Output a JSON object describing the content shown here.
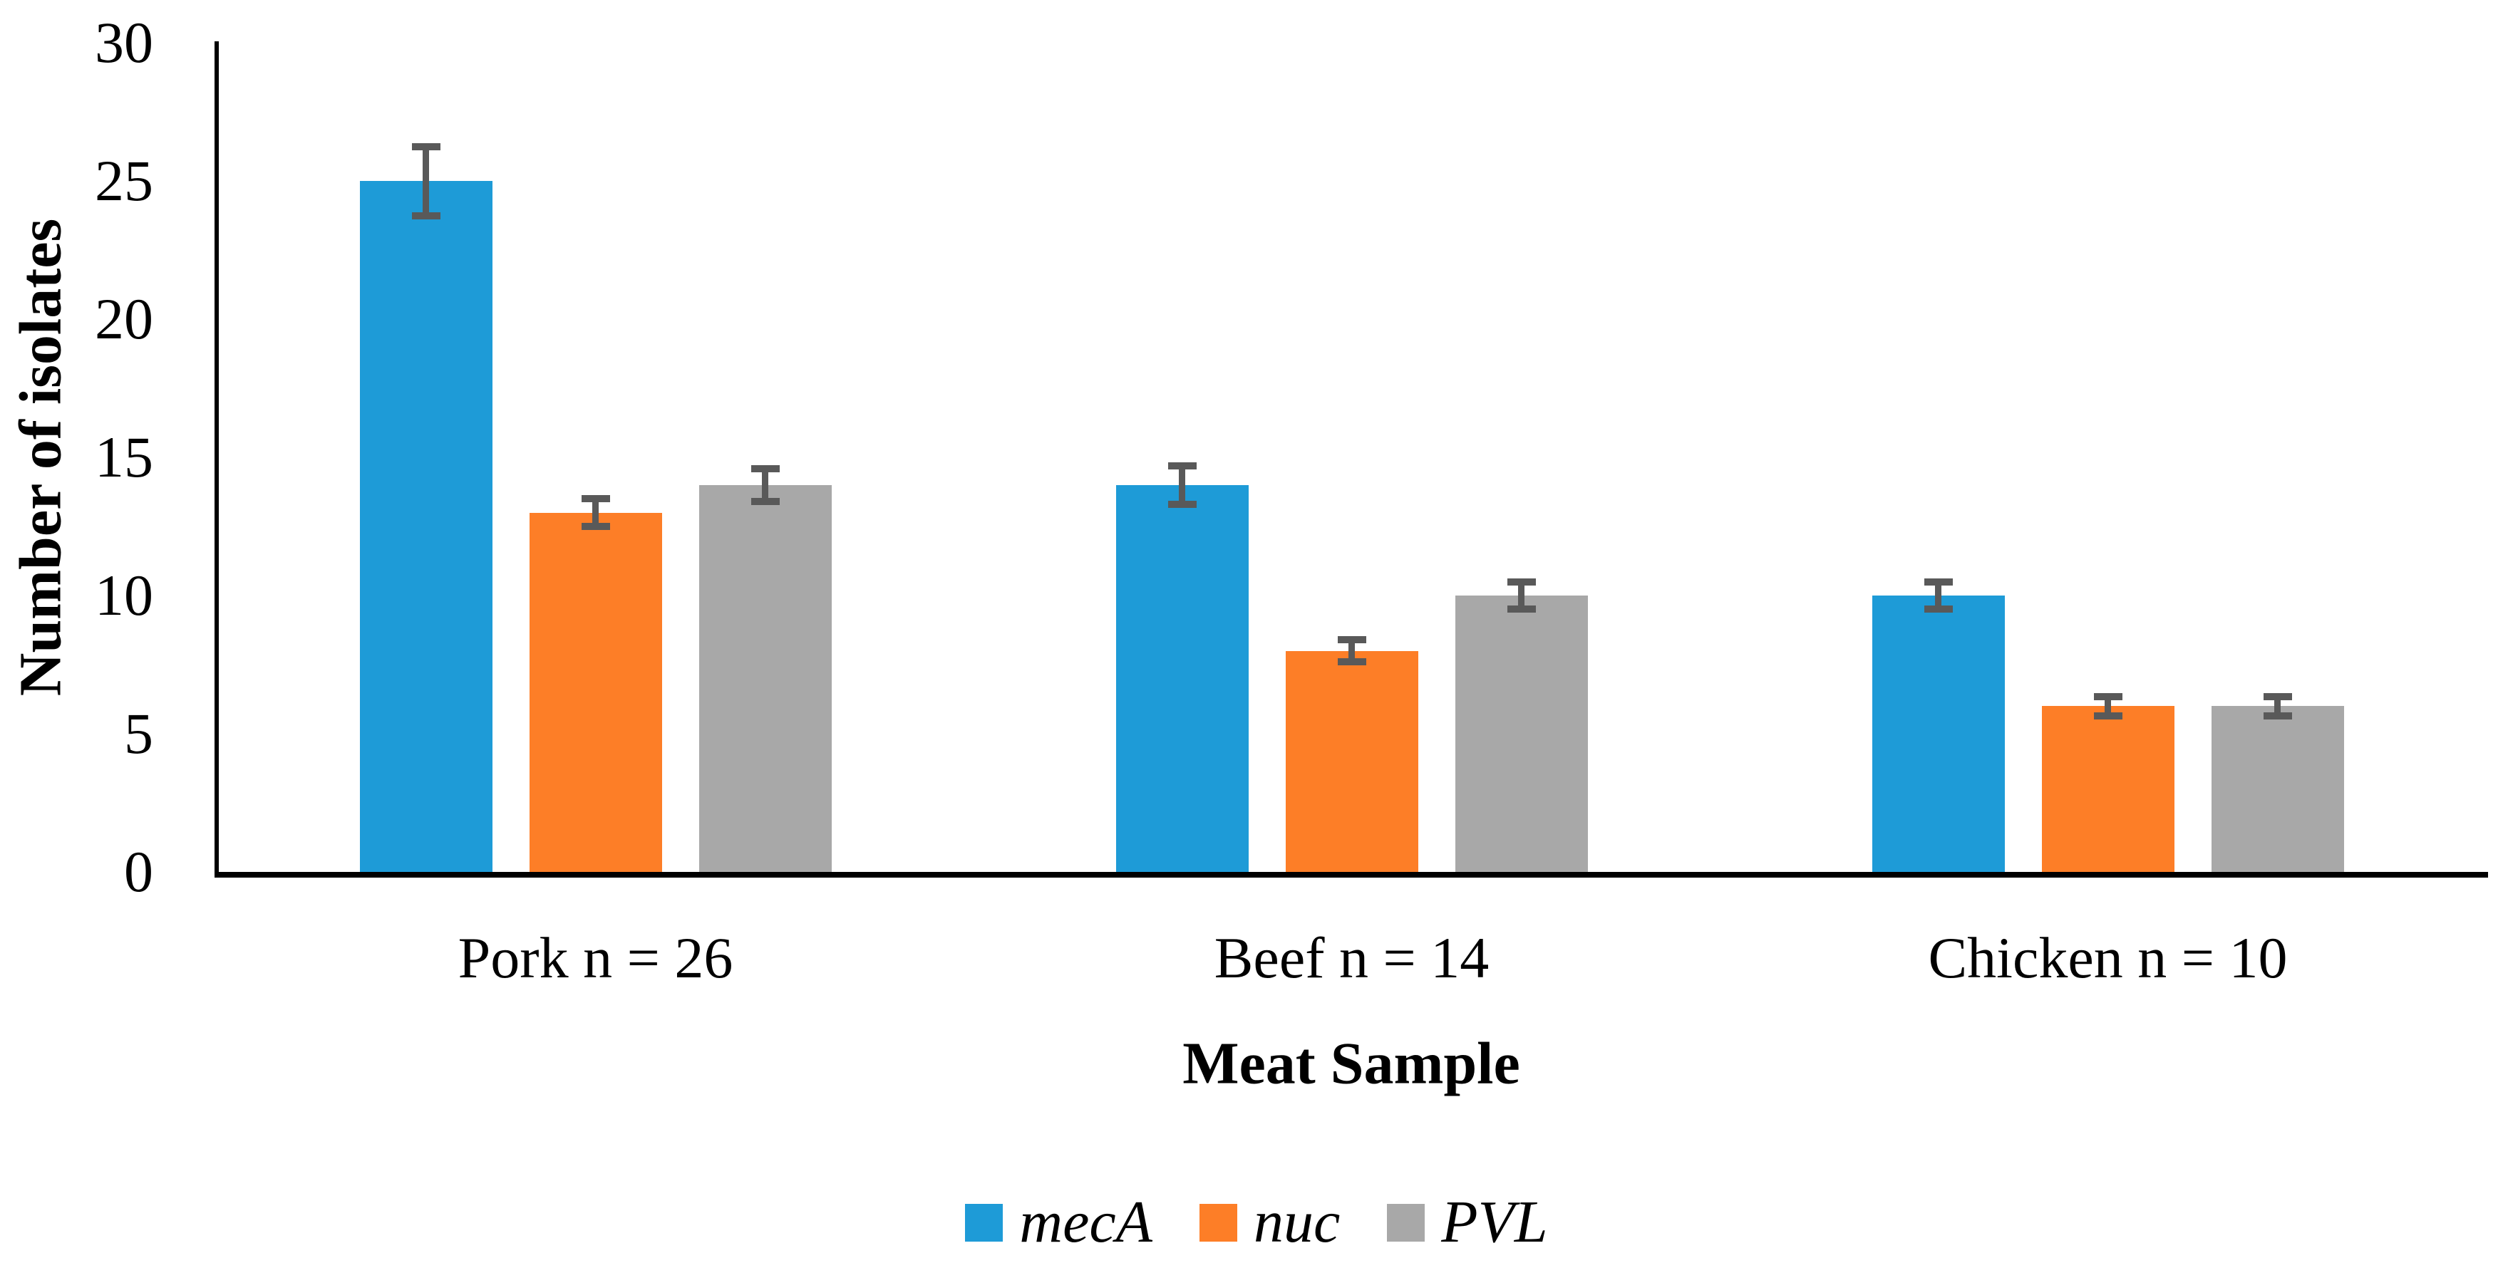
{
  "chart_data": {
    "type": "bar",
    "title": "",
    "categories": [
      "Pork n = 26",
      "Beef n = 14",
      "Chicken n = 10"
    ],
    "series": [
      {
        "name": "mecA",
        "color": "#1E9BD7",
        "values": [
          25,
          14,
          10
        ],
        "errors": [
          1.25,
          0.7,
          0.5
        ]
      },
      {
        "name": "nuc",
        "color": "#FD7E27",
        "values": [
          13,
          8,
          6
        ],
        "errors": [
          0.5,
          0.4,
          0.35
        ]
      },
      {
        "name": "PVL",
        "color": "#A8A8A8",
        "values": [
          14,
          10,
          6
        ],
        "errors": [
          0.6,
          0.5,
          0.35
        ]
      }
    ],
    "xlabel": "Meat Sample",
    "ylabel": "Number of isolates",
    "ylim": [
      0,
      30
    ],
    "yticks": [
      0,
      5,
      10,
      15,
      20,
      25,
      30
    ],
    "grid": false,
    "legend_position": "bottom",
    "error_bar_color": "#595959",
    "axis_color": "#000000",
    "background": "#FFFFFF"
  }
}
